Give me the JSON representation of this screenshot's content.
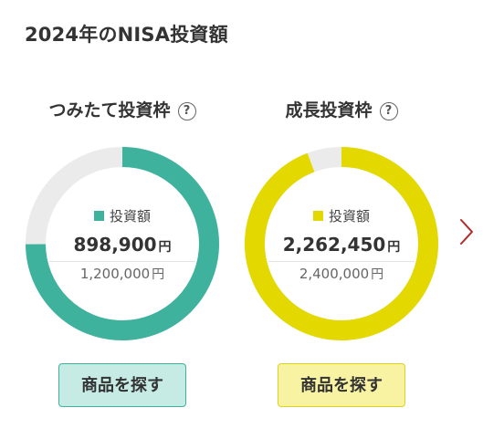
{
  "page": {
    "title": "2024年のNISA投資額"
  },
  "cards": [
    {
      "title": "つみたて投資枠",
      "help_symbol": "?",
      "legend_label": "投資額",
      "amount": "898,900",
      "amount_unit": "円",
      "limit": "1,200,000",
      "limit_unit": "円",
      "button_label": "商品を探す",
      "invested": 898900,
      "limit_value": 1200000,
      "color": "#3fb29d",
      "remaining_color": "#ebebeb"
    },
    {
      "title": "成長投資枠",
      "help_symbol": "?",
      "legend_label": "投資額",
      "amount": "2,262,450",
      "amount_unit": "円",
      "limit": "2,400,000",
      "limit_unit": "円",
      "button_label": "商品を探す",
      "invested": 2262450,
      "limit_value": 2400000,
      "color": "#e3d800",
      "remaining_color": "#ebebeb"
    }
  ],
  "navigation": {
    "next_icon": "chevron-right-icon",
    "next_color": "#b22a2a"
  }
}
